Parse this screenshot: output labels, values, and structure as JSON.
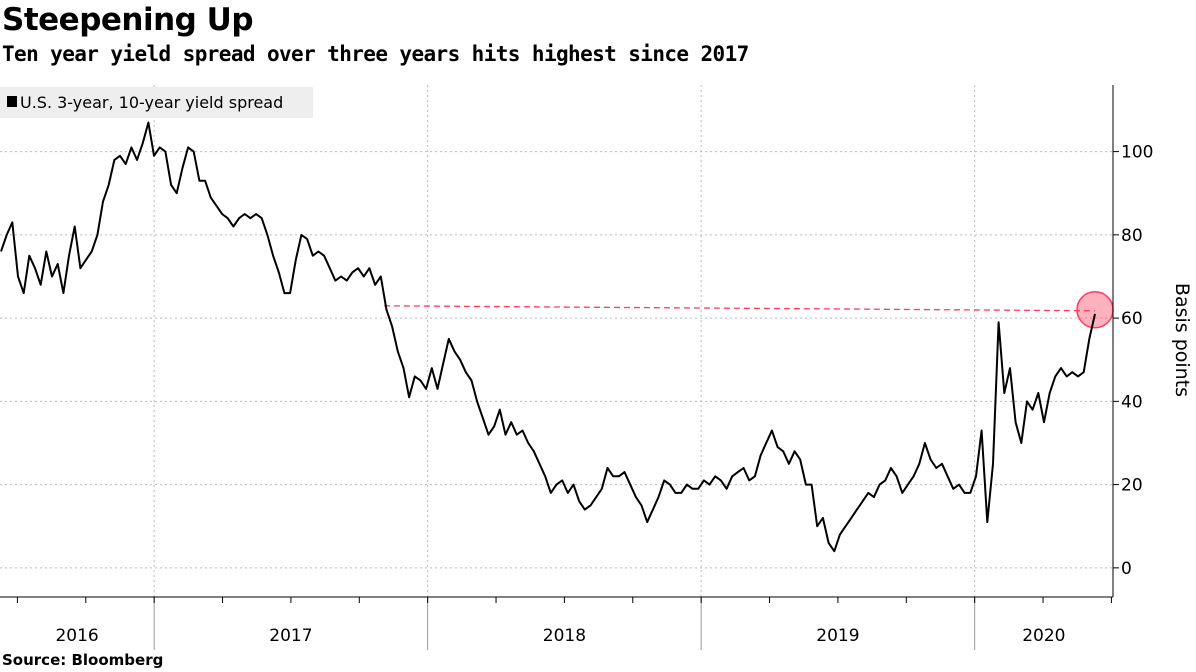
{
  "title": "Steepening Up",
  "subtitle": "Ten year yield spread over three years hits highest since 2017",
  "source": "Source: Bloomberg",
  "chart_data": {
    "type": "line",
    "title": "Steepening Up",
    "ylabel": "Basis points",
    "xlabel": "",
    "ylim": [
      -7,
      116
    ],
    "yticks": [
      0,
      20,
      40,
      60,
      80,
      100
    ],
    "xticks": [
      "2016",
      "2017",
      "2018",
      "2019",
      "2020"
    ],
    "x_start": 2016.44,
    "x_end": 2020.44,
    "grid": true,
    "legend": "top-left",
    "highlight": {
      "value": 62,
      "from": 2017.84,
      "label": "highest since 2017"
    },
    "series": [
      {
        "name": "U.S. 3-year, 10-year yield spread",
        "color": "#000000",
        "values": [
          76,
          80,
          83,
          70,
          66,
          75,
          72,
          68,
          76,
          70,
          73,
          66,
          75,
          82,
          72,
          74,
          76,
          80,
          88,
          92,
          98,
          99,
          97,
          101,
          98,
          102,
          107,
          99,
          101,
          100,
          92,
          90,
          96,
          101,
          100,
          93,
          93,
          89,
          87,
          85,
          84,
          82,
          84,
          85,
          84,
          85,
          84,
          80,
          75,
          71,
          66,
          66,
          74,
          80,
          79,
          75,
          76,
          75,
          72,
          69,
          70,
          69,
          71,
          72,
          70,
          72,
          68,
          70,
          62,
          58,
          52,
          48,
          41,
          46,
          45,
          43,
          48,
          43,
          49,
          55,
          52,
          50,
          47,
          45,
          40,
          36,
          32,
          34,
          38,
          32,
          35,
          32,
          33,
          30,
          28,
          25,
          22,
          18,
          20,
          21,
          18,
          20,
          16,
          14,
          15,
          17,
          19,
          24,
          22,
          22,
          23,
          20,
          17,
          15,
          11,
          14,
          17,
          21,
          20,
          18,
          18,
          20,
          19,
          19,
          21,
          20,
          22,
          21,
          19,
          22,
          23,
          24,
          21,
          22,
          27,
          30,
          33,
          29,
          28,
          25,
          28,
          26,
          20,
          20,
          10,
          12,
          6,
          4,
          8,
          10,
          12,
          14,
          16,
          18,
          17,
          20,
          21,
          24,
          22,
          18,
          20,
          22,
          25,
          30,
          26,
          24,
          25,
          22,
          19,
          20,
          18,
          18,
          22,
          33,
          11,
          25,
          59,
          42,
          48,
          35,
          30,
          40,
          38,
          42,
          35,
          42,
          46,
          48,
          46,
          47,
          46,
          47,
          55,
          61
        ]
      }
    ]
  },
  "colors": {
    "line": "#000000",
    "highlight": "#ff3b5c",
    "legend_bg": "#eeeeee",
    "grid": "#bbbbbb"
  }
}
